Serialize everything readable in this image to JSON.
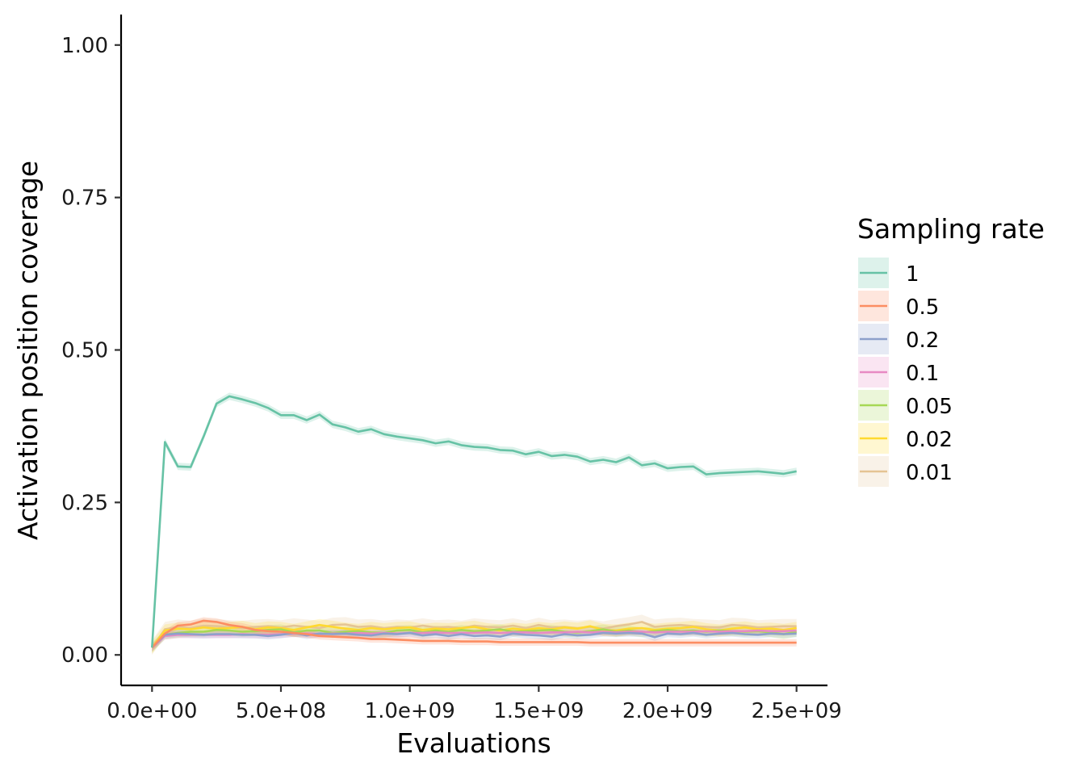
{
  "chart_data": {
    "type": "line",
    "xlabel": "Evaluations",
    "ylabel": "Activation position coverage",
    "xlim": [
      -120000000,
      2620000000
    ],
    "ylim": [
      -0.05,
      1.05
    ],
    "x_ticks": [
      0,
      500000000,
      1000000000,
      1500000000,
      2000000000,
      2500000000
    ],
    "x_tick_labels": [
      "0.0e+00",
      "5.0e+08",
      "1.0e+09",
      "1.5e+09",
      "2.0e+09",
      "2.5e+09"
    ],
    "y_ticks": [
      0,
      0.25,
      0.5,
      0.75,
      1.0
    ],
    "y_tick_labels": [
      "0.00",
      "0.25",
      "0.50",
      "0.75",
      "1.00"
    ],
    "legend_title": "Sampling rate",
    "legend_position": "right",
    "grid": false,
    "x": [
      0,
      50000000,
      100000000,
      150000000,
      200000000,
      250000000,
      300000000,
      350000000,
      400000000,
      450000000,
      500000000,
      550000000,
      600000000,
      650000000,
      700000000,
      750000000,
      800000000,
      850000000,
      900000000,
      950000000,
      1000000000,
      1050000000,
      1100000000,
      1150000000,
      1200000000,
      1250000000,
      1300000000,
      1350000000,
      1400000000,
      1450000000,
      1500000000,
      1550000000,
      1600000000,
      1650000000,
      1700000000,
      1750000000,
      1800000000,
      1850000000,
      1900000000,
      1950000000,
      2000000000,
      2050000000,
      2100000000,
      2150000000,
      2200000000,
      2250000000,
      2300000000,
      2350000000,
      2400000000,
      2450000000,
      2500000000
    ],
    "series": [
      {
        "name": "1",
        "color": "#66c2a5",
        "band": 0.006,
        "values": [
          0.012,
          0.349,
          0.309,
          0.308,
          0.358,
          0.412,
          0.424,
          0.419,
          0.413,
          0.405,
          0.393,
          0.393,
          0.385,
          0.394,
          0.378,
          0.373,
          0.366,
          0.37,
          0.362,
          0.358,
          0.355,
          0.352,
          0.347,
          0.35,
          0.344,
          0.341,
          0.34,
          0.336,
          0.335,
          0.329,
          0.333,
          0.326,
          0.328,
          0.325,
          0.317,
          0.32,
          0.316,
          0.324,
          0.311,
          0.314,
          0.306,
          0.308,
          0.309,
          0.296,
          0.298,
          0.299,
          0.3,
          0.301,
          0.299,
          0.297,
          0.301
        ]
      },
      {
        "name": "0.5",
        "color": "#fc8d62",
        "band": 0.006,
        "values": [
          0.012,
          0.035,
          0.048,
          0.05,
          0.056,
          0.054,
          0.049,
          0.046,
          0.041,
          0.039,
          0.038,
          0.036,
          0.034,
          0.031,
          0.03,
          0.029,
          0.028,
          0.026,
          0.026,
          0.025,
          0.024,
          0.023,
          0.023,
          0.023,
          0.022,
          0.022,
          0.022,
          0.021,
          0.021,
          0.021,
          0.021,
          0.021,
          0.021,
          0.021,
          0.02,
          0.02,
          0.02,
          0.02,
          0.02,
          0.02,
          0.02,
          0.02,
          0.02,
          0.02,
          0.02,
          0.02,
          0.02,
          0.02,
          0.02,
          0.02,
          0.02
        ]
      },
      {
        "name": "0.2",
        "color": "#8da0cb",
        "band": 0.006,
        "values": [
          0.012,
          0.033,
          0.035,
          0.034,
          0.033,
          0.034,
          0.034,
          0.033,
          0.033,
          0.031,
          0.033,
          0.036,
          0.032,
          0.035,
          0.034,
          0.035,
          0.033,
          0.032,
          0.035,
          0.034,
          0.036,
          0.032,
          0.034,
          0.031,
          0.034,
          0.031,
          0.032,
          0.03,
          0.035,
          0.033,
          0.032,
          0.03,
          0.034,
          0.032,
          0.033,
          0.036,
          0.035,
          0.036,
          0.035,
          0.029,
          0.035,
          0.034,
          0.036,
          0.033,
          0.035,
          0.036,
          0.034,
          0.033,
          0.035,
          0.034,
          0.035
        ]
      },
      {
        "name": "0.1",
        "color": "#e78ac3",
        "band": 0.006,
        "values": [
          0.012,
          0.031,
          0.033,
          0.033,
          0.033,
          0.033,
          0.033,
          0.034,
          0.033,
          0.033,
          0.034,
          0.035,
          0.035,
          0.034,
          0.035,
          0.035,
          0.036,
          0.035,
          0.036,
          0.035,
          0.036,
          0.036,
          0.037,
          0.036,
          0.036,
          0.036,
          0.037,
          0.036,
          0.037,
          0.037,
          0.036,
          0.037,
          0.037,
          0.038,
          0.037,
          0.038,
          0.037,
          0.038,
          0.038,
          0.037,
          0.038,
          0.038,
          0.038,
          0.039,
          0.038,
          0.039,
          0.039,
          0.04,
          0.039,
          0.039,
          0.04
        ]
      },
      {
        "name": "0.05",
        "color": "#a6d854",
        "band": 0.008,
        "values": [
          0.012,
          0.033,
          0.036,
          0.038,
          0.038,
          0.041,
          0.04,
          0.038,
          0.039,
          0.041,
          0.042,
          0.037,
          0.04,
          0.04,
          0.036,
          0.038,
          0.039,
          0.037,
          0.036,
          0.04,
          0.041,
          0.037,
          0.04,
          0.038,
          0.041,
          0.039,
          0.04,
          0.042,
          0.038,
          0.039,
          0.04,
          0.041,
          0.038,
          0.037,
          0.039,
          0.042,
          0.038,
          0.04,
          0.037,
          0.039,
          0.041,
          0.039,
          0.04,
          0.038,
          0.04,
          0.039,
          0.038,
          0.039,
          0.037,
          0.034,
          0.038
        ]
      },
      {
        "name": "0.02",
        "color": "#ffd92f",
        "band": 0.01,
        "values": [
          0.012,
          0.04,
          0.043,
          0.042,
          0.045,
          0.043,
          0.044,
          0.046,
          0.042,
          0.045,
          0.044,
          0.041,
          0.045,
          0.049,
          0.046,
          0.043,
          0.041,
          0.044,
          0.042,
          0.044,
          0.045,
          0.041,
          0.043,
          0.042,
          0.044,
          0.046,
          0.042,
          0.04,
          0.043,
          0.041,
          0.044,
          0.042,
          0.045,
          0.043,
          0.047,
          0.041,
          0.04,
          0.043,
          0.044,
          0.041,
          0.043,
          0.044,
          0.046,
          0.042,
          0.04,
          0.043,
          0.045,
          0.042,
          0.043,
          0.041,
          0.044
        ]
      },
      {
        "name": "0.01",
        "color": "#e5c494",
        "band": 0.012,
        "values": [
          0.012,
          0.042,
          0.046,
          0.044,
          0.048,
          0.047,
          0.045,
          0.044,
          0.046,
          0.047,
          0.045,
          0.048,
          0.046,
          0.044,
          0.049,
          0.05,
          0.046,
          0.047,
          0.044,
          0.046,
          0.045,
          0.048,
          0.045,
          0.046,
          0.044,
          0.048,
          0.046,
          0.045,
          0.048,
          0.044,
          0.049,
          0.045,
          0.046,
          0.044,
          0.046,
          0.043,
          0.047,
          0.05,
          0.054,
          0.046,
          0.048,
          0.049,
          0.047,
          0.046,
          0.045,
          0.049,
          0.048,
          0.045,
          0.046,
          0.047,
          0.047
        ]
      }
    ]
  }
}
